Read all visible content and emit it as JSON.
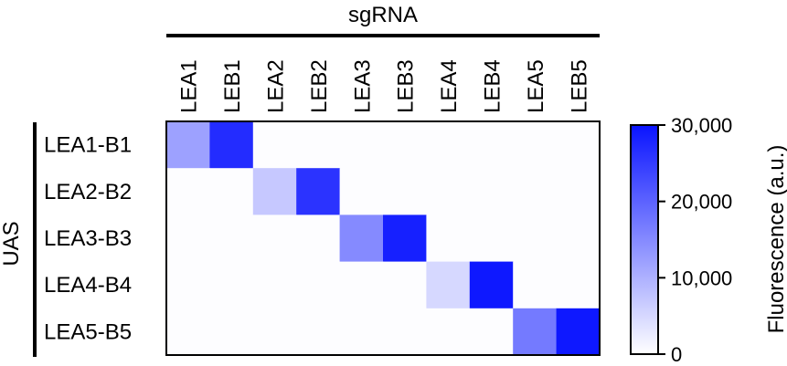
{
  "chart_data": {
    "type": "heatmap",
    "column_group_label": "sgRNA",
    "row_group_label": "UAS",
    "columns": [
      "LEA1",
      "LEB1",
      "LEA2",
      "LEB2",
      "LEA3",
      "LEB3",
      "LEA4",
      "LEB4",
      "LEA5",
      "LEB5"
    ],
    "rows": [
      "LEA1-B1",
      "LEA2-B2",
      "LEA3-B3",
      "LEA4-B4",
      "LEA5-B5"
    ],
    "values": [
      [
        12000,
        27000,
        300,
        300,
        300,
        300,
        300,
        300,
        300,
        300
      ],
      [
        200,
        200,
        7000,
        26000,
        200,
        200,
        200,
        200,
        200,
        200
      ],
      [
        200,
        200,
        200,
        200,
        15000,
        28500,
        200,
        200,
        200,
        200
      ],
      [
        200,
        200,
        200,
        200,
        200,
        200,
        5000,
        29500,
        200,
        200
      ],
      [
        200,
        200,
        200,
        200,
        200,
        200,
        200,
        200,
        17000,
        29500
      ]
    ],
    "colorbar": {
      "label": "Fluorescence (a.u.)",
      "min": 0,
      "max": 30000,
      "ticks": [
        0,
        10000,
        20000,
        30000
      ],
      "tick_labels": [
        "0",
        "10,000",
        "20,000",
        "30,000"
      ],
      "color_low": "#ffffff",
      "color_high": "#0a14ff"
    }
  }
}
